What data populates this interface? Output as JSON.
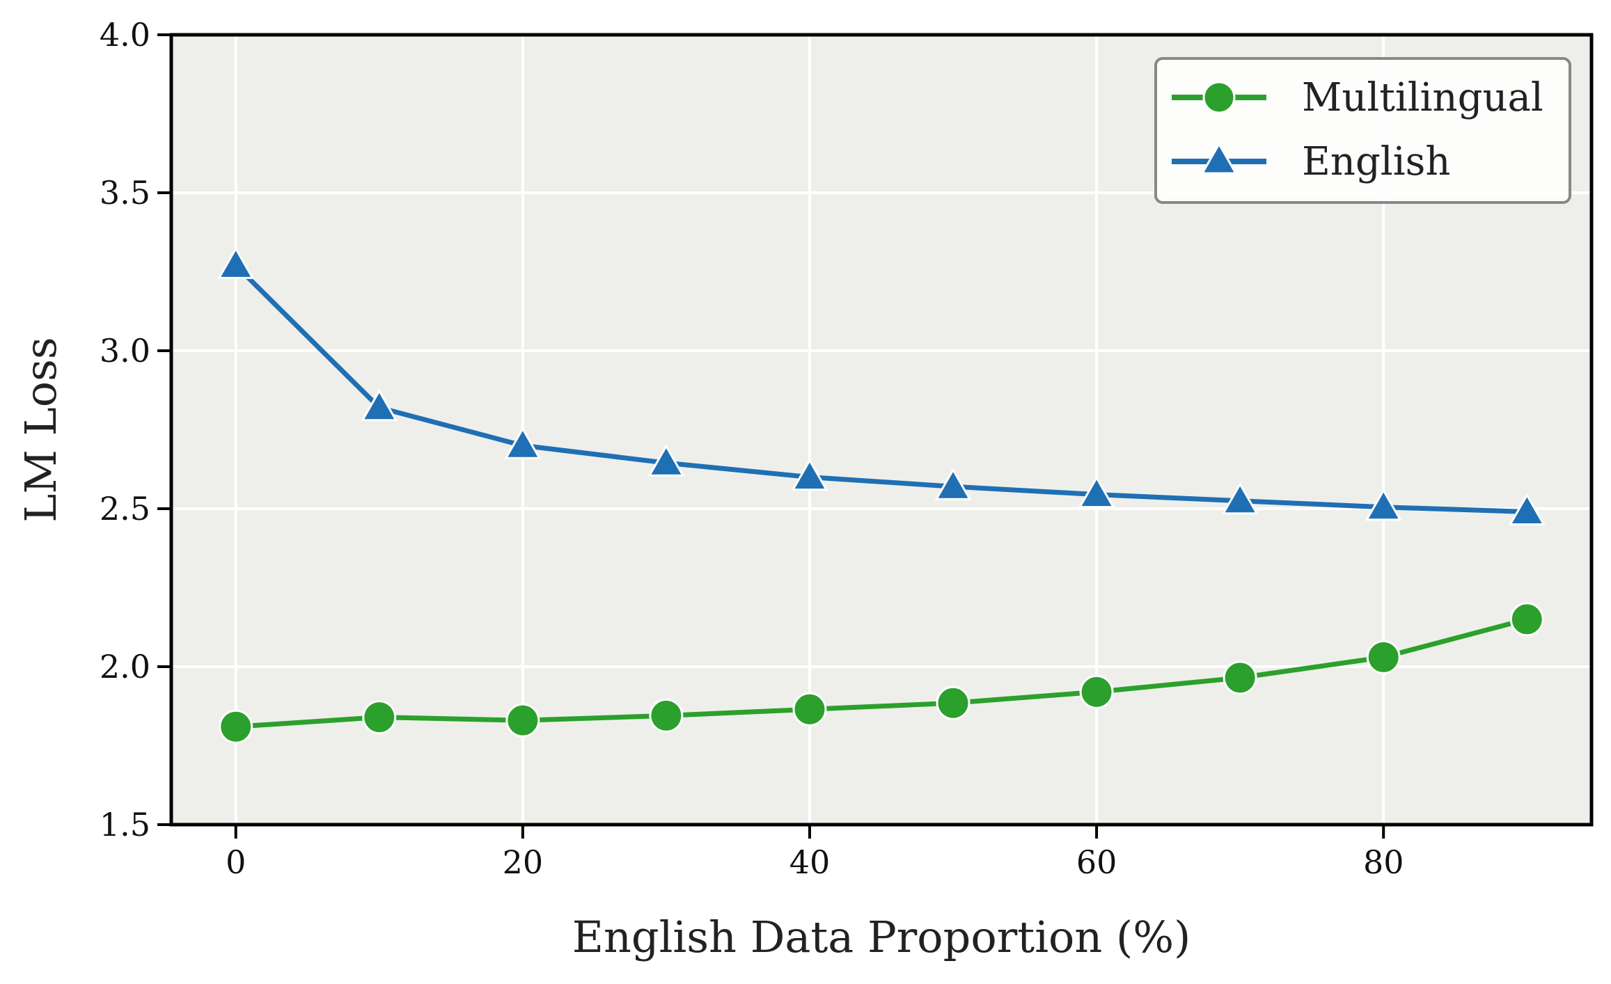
{
  "chart_data": {
    "type": "line",
    "title": "",
    "xlabel": "English Data Proportion (%)",
    "ylabel": "LM Loss",
    "x": [
      0,
      10,
      20,
      30,
      40,
      50,
      60,
      70,
      80,
      90
    ],
    "xticks": [
      0,
      20,
      40,
      60,
      80
    ],
    "yticks": [
      1.5,
      2.0,
      2.5,
      3.0,
      3.5,
      4.0
    ],
    "xtick_labels": [
      "0",
      "20",
      "40",
      "60",
      "80"
    ],
    "ytick_labels": [
      "1.5",
      "2.0",
      "2.5",
      "3.0",
      "3.5",
      "4.0"
    ],
    "xlim": [
      -4.5,
      94.5
    ],
    "ylim": [
      1.5,
      4.0
    ],
    "grid": true,
    "legend_position": "top-right",
    "background_color": "#eeefea",
    "series": [
      {
        "name": "Multilingual",
        "marker": "circle",
        "color": "#2ca02c",
        "values": [
          1.81,
          1.84,
          1.83,
          1.845,
          1.865,
          1.885,
          1.92,
          1.965,
          2.03,
          2.15
        ]
      },
      {
        "name": "English",
        "marker": "triangle",
        "color": "#1f6fb4",
        "values": [
          3.27,
          2.82,
          2.7,
          2.645,
          2.6,
          2.57,
          2.545,
          2.525,
          2.505,
          2.49
        ]
      }
    ]
  }
}
